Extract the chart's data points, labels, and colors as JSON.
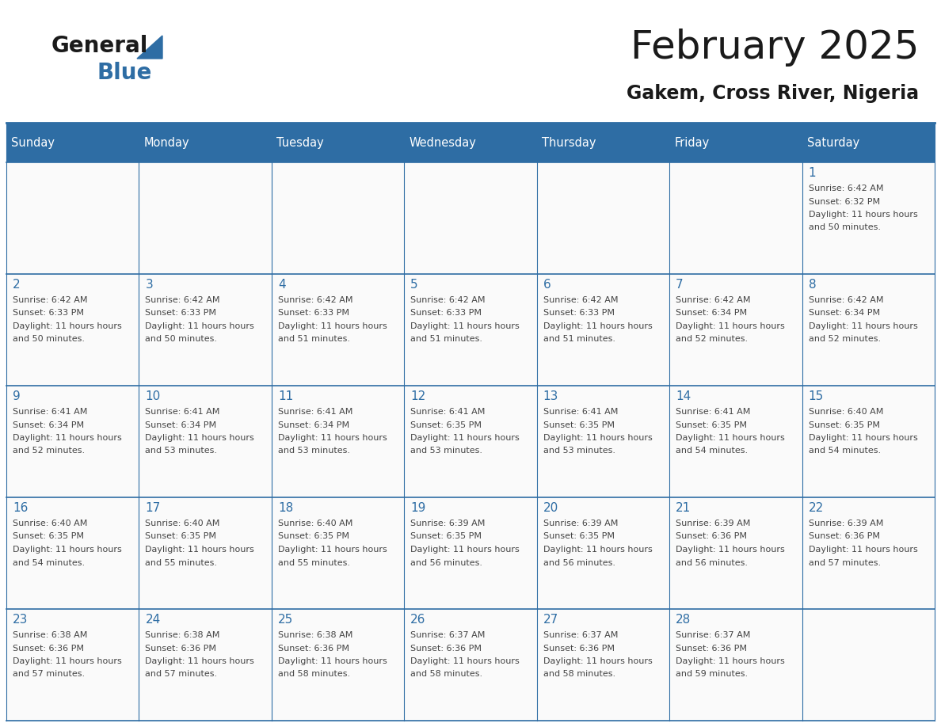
{
  "title": "February 2025",
  "subtitle": "Gakem, Cross River, Nigeria",
  "header_color": "#2E6DA4",
  "header_text_color": "#FFFFFF",
  "day_names": [
    "Sunday",
    "Monday",
    "Tuesday",
    "Wednesday",
    "Thursday",
    "Friday",
    "Saturday"
  ],
  "bg_color": "#FFFFFF",
  "cell_bg": "#FAFAFA",
  "border_color": "#2E6DA4",
  "day_num_color": "#2E6DA4",
  "text_color": "#444444",
  "line_color": "#2E6DA4",
  "calendar": [
    [
      null,
      null,
      null,
      null,
      null,
      null,
      {
        "day": 1,
        "sunrise": "6:42 AM",
        "sunset": "6:32 PM",
        "daylight": "11 hours and 50 minutes."
      }
    ],
    [
      {
        "day": 2,
        "sunrise": "6:42 AM",
        "sunset": "6:33 PM",
        "daylight": "11 hours and 50 minutes."
      },
      {
        "day": 3,
        "sunrise": "6:42 AM",
        "sunset": "6:33 PM",
        "daylight": "11 hours and 50 minutes."
      },
      {
        "day": 4,
        "sunrise": "6:42 AM",
        "sunset": "6:33 PM",
        "daylight": "11 hours and 51 minutes."
      },
      {
        "day": 5,
        "sunrise": "6:42 AM",
        "sunset": "6:33 PM",
        "daylight": "11 hours and 51 minutes."
      },
      {
        "day": 6,
        "sunrise": "6:42 AM",
        "sunset": "6:33 PM",
        "daylight": "11 hours and 51 minutes."
      },
      {
        "day": 7,
        "sunrise": "6:42 AM",
        "sunset": "6:34 PM",
        "daylight": "11 hours and 52 minutes."
      },
      {
        "day": 8,
        "sunrise": "6:42 AM",
        "sunset": "6:34 PM",
        "daylight": "11 hours and 52 minutes."
      }
    ],
    [
      {
        "day": 9,
        "sunrise": "6:41 AM",
        "sunset": "6:34 PM",
        "daylight": "11 hours and 52 minutes."
      },
      {
        "day": 10,
        "sunrise": "6:41 AM",
        "sunset": "6:34 PM",
        "daylight": "11 hours and 53 minutes."
      },
      {
        "day": 11,
        "sunrise": "6:41 AM",
        "sunset": "6:34 PM",
        "daylight": "11 hours and 53 minutes."
      },
      {
        "day": 12,
        "sunrise": "6:41 AM",
        "sunset": "6:35 PM",
        "daylight": "11 hours and 53 minutes."
      },
      {
        "day": 13,
        "sunrise": "6:41 AM",
        "sunset": "6:35 PM",
        "daylight": "11 hours and 53 minutes."
      },
      {
        "day": 14,
        "sunrise": "6:41 AM",
        "sunset": "6:35 PM",
        "daylight": "11 hours and 54 minutes."
      },
      {
        "day": 15,
        "sunrise": "6:40 AM",
        "sunset": "6:35 PM",
        "daylight": "11 hours and 54 minutes."
      }
    ],
    [
      {
        "day": 16,
        "sunrise": "6:40 AM",
        "sunset": "6:35 PM",
        "daylight": "11 hours and 54 minutes."
      },
      {
        "day": 17,
        "sunrise": "6:40 AM",
        "sunset": "6:35 PM",
        "daylight": "11 hours and 55 minutes."
      },
      {
        "day": 18,
        "sunrise": "6:40 AM",
        "sunset": "6:35 PM",
        "daylight": "11 hours and 55 minutes."
      },
      {
        "day": 19,
        "sunrise": "6:39 AM",
        "sunset": "6:35 PM",
        "daylight": "11 hours and 56 minutes."
      },
      {
        "day": 20,
        "sunrise": "6:39 AM",
        "sunset": "6:35 PM",
        "daylight": "11 hours and 56 minutes."
      },
      {
        "day": 21,
        "sunrise": "6:39 AM",
        "sunset": "6:36 PM",
        "daylight": "11 hours and 56 minutes."
      },
      {
        "day": 22,
        "sunrise": "6:39 AM",
        "sunset": "6:36 PM",
        "daylight": "11 hours and 57 minutes."
      }
    ],
    [
      {
        "day": 23,
        "sunrise": "6:38 AM",
        "sunset": "6:36 PM",
        "daylight": "11 hours and 57 minutes."
      },
      {
        "day": 24,
        "sunrise": "6:38 AM",
        "sunset": "6:36 PM",
        "daylight": "11 hours and 57 minutes."
      },
      {
        "day": 25,
        "sunrise": "6:38 AM",
        "sunset": "6:36 PM",
        "daylight": "11 hours and 58 minutes."
      },
      {
        "day": 26,
        "sunrise": "6:37 AM",
        "sunset": "6:36 PM",
        "daylight": "11 hours and 58 minutes."
      },
      {
        "day": 27,
        "sunrise": "6:37 AM",
        "sunset": "6:36 PM",
        "daylight": "11 hours and 58 minutes."
      },
      {
        "day": 28,
        "sunrise": "6:37 AM",
        "sunset": "6:36 PM",
        "daylight": "11 hours and 59 minutes."
      },
      null
    ]
  ],
  "logo_text_general": "General",
  "logo_text_blue": "Blue",
  "logo_color_general": "#1a1a1a",
  "logo_color_blue": "#2E6DA4",
  "logo_triangle_color": "#2E6DA4",
  "fig_width": 11.88,
  "fig_height": 9.18,
  "dpi": 100
}
